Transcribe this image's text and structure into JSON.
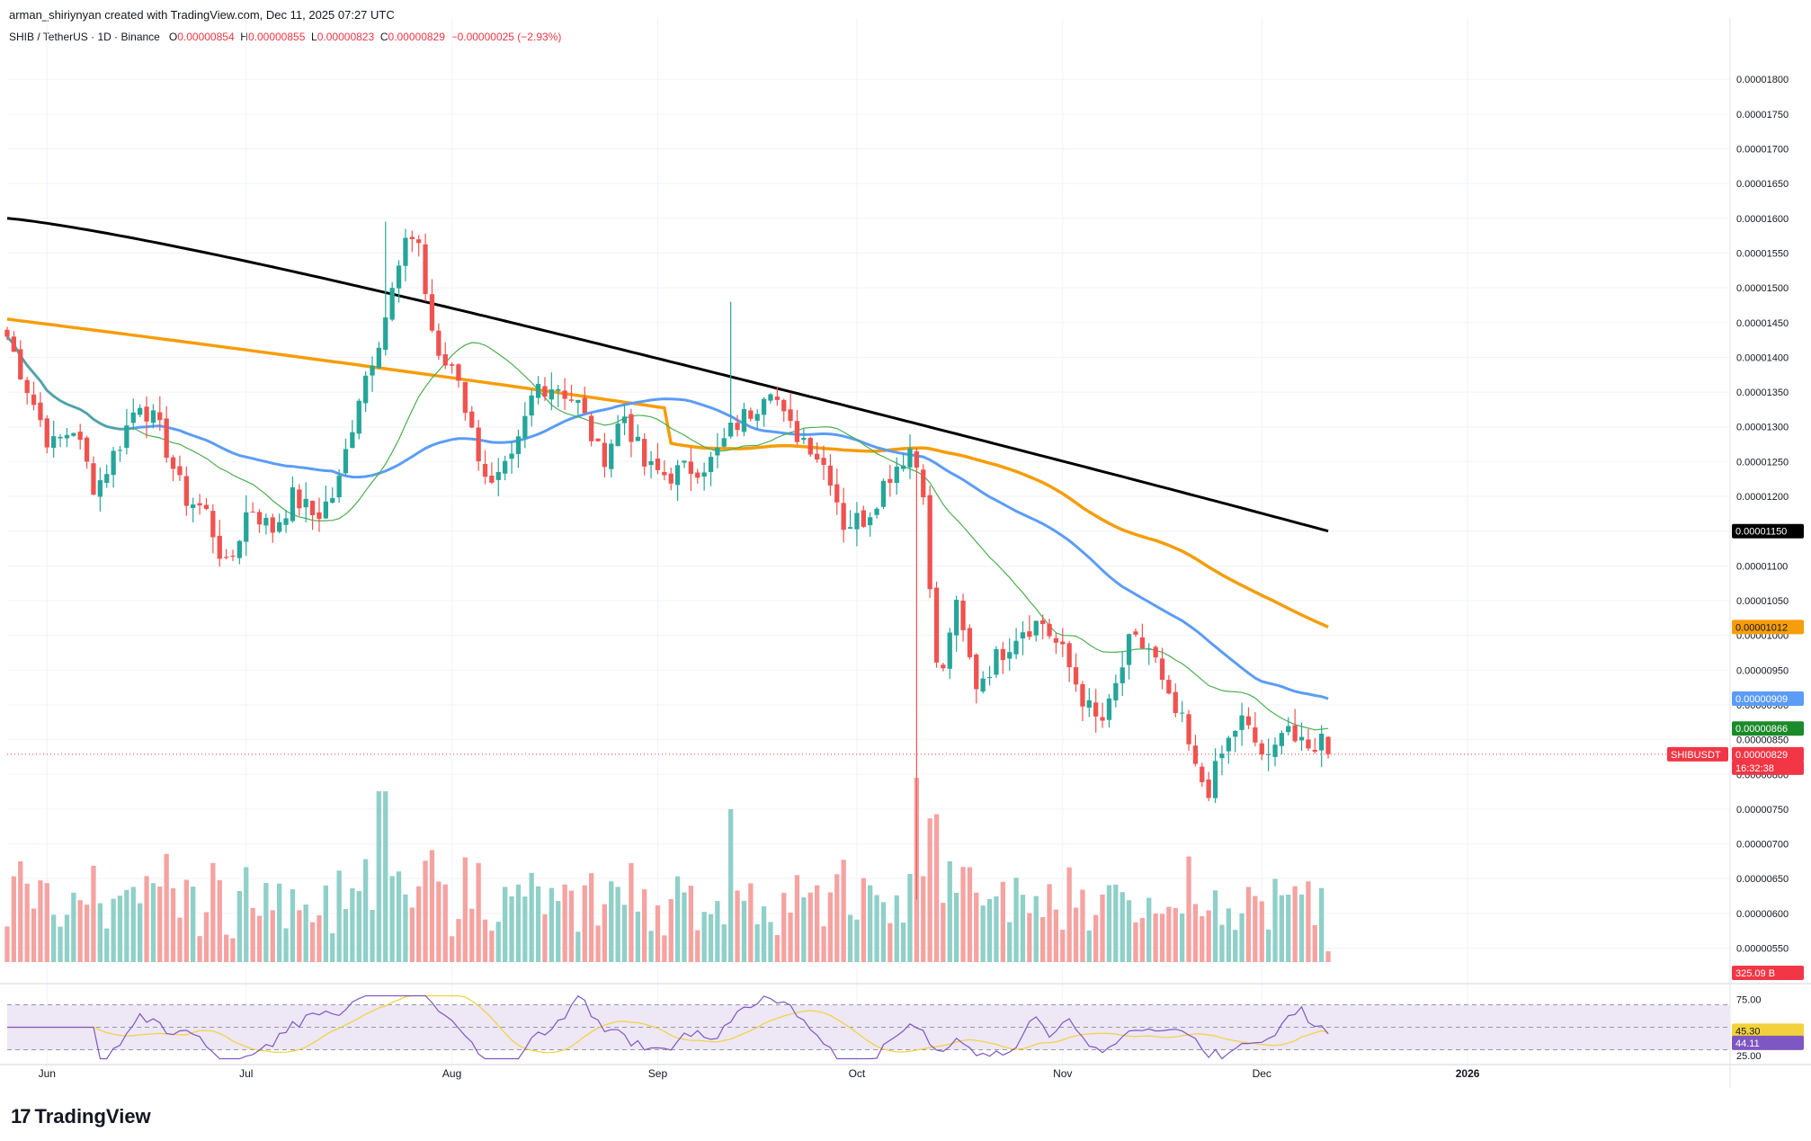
{
  "header": {
    "attribution": "arman_shiriynyan created with TradingView.com, Dec 11, 2025 07:27 UTC"
  },
  "legend": {
    "symbol": "SHIB / TetherUS · 1D · Binance",
    "o_label": "O",
    "o_value": "0.00000854",
    "h_label": "H",
    "h_value": "0.00000855",
    "l_label": "L",
    "l_value": "0.00000823",
    "c_label": "C",
    "c_value": "0.00000829",
    "change": "−0.00000025 (−2.93%)"
  },
  "footer": {
    "logo_text": "TradingView",
    "logo_mark": "17"
  },
  "colors": {
    "up": "#26a69a",
    "down": "#ef5350",
    "ma200": "#000000",
    "ma100": "#f59d0a",
    "ma50": "#5b9cf6",
    "ma20": "#4caf50",
    "rsi": "#7e57c2",
    "rsi_ma": "#f2d13b",
    "rsi_band": "#ede7f6",
    "vol_up": "#8fd0c8",
    "vol_down": "#f5a3a1"
  },
  "chart_data": {
    "type": "candlestick",
    "price_ticks": [
      "0.00001800",
      "0.00001750",
      "0.00001700",
      "0.00001650",
      "0.00001600",
      "0.00001550",
      "0.00001500",
      "0.00001450",
      "0.00001400",
      "0.00001350",
      "0.00001300",
      "0.00001250",
      "0.00001200",
      "0.00001150",
      "0.00001100",
      "0.00001050",
      "0.00001000",
      "0.00000950",
      "0.00000900",
      "0.00000850",
      "0.00000800",
      "0.00000750",
      "0.00000700",
      "0.00000650",
      "0.00000600",
      "0.00000550"
    ],
    "price_range": [
      5.3e-06,
      1.83e-05
    ],
    "x_labels": [
      "Jun",
      "Jul",
      "Aug",
      "Sep",
      "Oct",
      "Nov",
      "Dec",
      "2026"
    ],
    "x_label_dates": [
      "2025-06-01",
      "2025-07-01",
      "2025-08-01",
      "2025-09-01",
      "2025-10-01",
      "2025-11-01",
      "2025-12-01",
      "2026-01-01"
    ],
    "date_range": [
      "2025-05-26",
      "2026-02-09"
    ],
    "candles_start": "2025-05-26",
    "candles_end": "2025-12-11",
    "closes_anchors": [
      [
        0,
        14.3
      ],
      [
        5,
        13.5
      ],
      [
        10,
        12.7
      ],
      [
        15,
        13.0
      ],
      [
        20,
        12.1
      ],
      [
        25,
        12.7
      ],
      [
        30,
        13.4
      ],
      [
        35,
        12.9
      ],
      [
        40,
        12.0
      ],
      [
        45,
        11.8
      ],
      [
        50,
        10.9
      ],
      [
        55,
        11.9
      ],
      [
        60,
        11.5
      ],
      [
        65,
        12.0
      ],
      [
        70,
        11.7
      ],
      [
        75,
        12.1
      ],
      [
        80,
        13.5
      ],
      [
        85,
        14.4
      ],
      [
        90,
        15.5
      ],
      [
        93,
        15.9
      ],
      [
        95,
        14.9
      ],
      [
        98,
        13.9
      ],
      [
        102,
        13.9
      ],
      [
        105,
        13.0
      ],
      [
        110,
        12.1
      ],
      [
        115,
        12.5
      ],
      [
        120,
        13.6
      ],
      [
        125,
        13.6
      ],
      [
        130,
        13.3
      ],
      [
        135,
        12.5
      ],
      [
        140,
        13.2
      ],
      [
        145,
        12.4
      ],
      [
        150,
        12.3
      ],
      [
        155,
        12.4
      ],
      [
        160,
        12.5
      ],
      [
        165,
        13.0
      ],
      [
        170,
        13.3
      ],
      [
        173,
        13.7
      ],
      [
        177,
        13.0
      ],
      [
        182,
        12.8
      ],
      [
        187,
        12.3
      ],
      [
        190,
        11.6
      ],
      [
        195,
        11.7
      ],
      [
        200,
        12.3
      ],
      [
        205,
        12.7
      ],
      [
        208,
        12.2
      ],
      [
        210,
        10.1
      ],
      [
        212,
        9.2
      ],
      [
        215,
        10.5
      ],
      [
        220,
        9.3
      ],
      [
        225,
        9.7
      ],
      [
        230,
        10.1
      ],
      [
        235,
        10.2
      ],
      [
        240,
        9.7
      ],
      [
        245,
        9.0
      ],
      [
        248,
        8.7
      ],
      [
        250,
        8.9
      ],
      [
        255,
        9.9
      ],
      [
        260,
        9.8
      ],
      [
        263,
        9.1
      ],
      [
        267,
        8.7
      ],
      [
        270,
        8.0
      ],
      [
        273,
        7.8
      ],
      [
        276,
        8.3
      ],
      [
        280,
        8.8
      ],
      [
        283,
        8.5
      ],
      [
        287,
        8.1
      ],
      [
        290,
        8.9
      ],
      [
        293,
        8.4
      ],
      [
        296,
        8.3
      ],
      [
        298,
        8.6
      ],
      [
        300,
        8.29
      ]
    ],
    "indicators": {
      "ma200": {
        "last_label": "0.00001150"
      },
      "ma100": {
        "last_label": "0.00001012"
      },
      "ma50": {
        "last_label": "0.00000909"
      },
      "ma20": {
        "last_label": "0.00000866"
      }
    },
    "last_price": {
      "symbol": "SHIBUSDT",
      "value": "0.00000829",
      "countdown": "16:32:38"
    },
    "volume": {
      "last_label": "325.09 B"
    },
    "rsi": {
      "ticks": [
        "75.00",
        "25.00"
      ],
      "value": "44.11",
      "ma_value": "45.30",
      "upper": 70,
      "lower": 30
    }
  }
}
